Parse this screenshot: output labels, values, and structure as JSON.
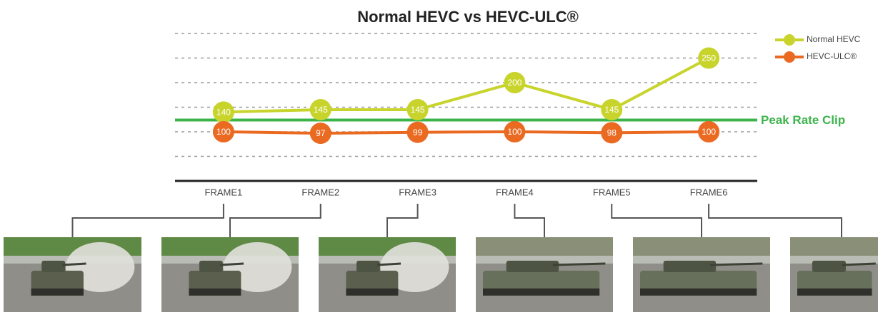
{
  "chart_data": {
    "type": "line",
    "title": "Normal HEVC vs HEVC-ULC®",
    "categories": [
      "FRAME1",
      "FRAME2",
      "FRAME3",
      "FRAME4",
      "FRAME5",
      "FRAME6"
    ],
    "series": [
      {
        "name": "Normal HEVC",
        "color": "#c8d42c",
        "values": [
          140,
          145,
          145,
          200,
          145,
          250
        ]
      },
      {
        "name": "HEVC-ULC®",
        "color": "#ea6a22",
        "values": [
          100,
          97,
          99,
          100,
          98,
          100
        ]
      }
    ],
    "ylim": [
      0,
      300
    ],
    "yticks": [
      50,
      100,
      150,
      200,
      250,
      300
    ],
    "grid": true,
    "reference_line": {
      "value": 124,
      "label": "Peak Rate Clip",
      "color": "#3cb44a"
    },
    "legend": "top-right"
  }
}
